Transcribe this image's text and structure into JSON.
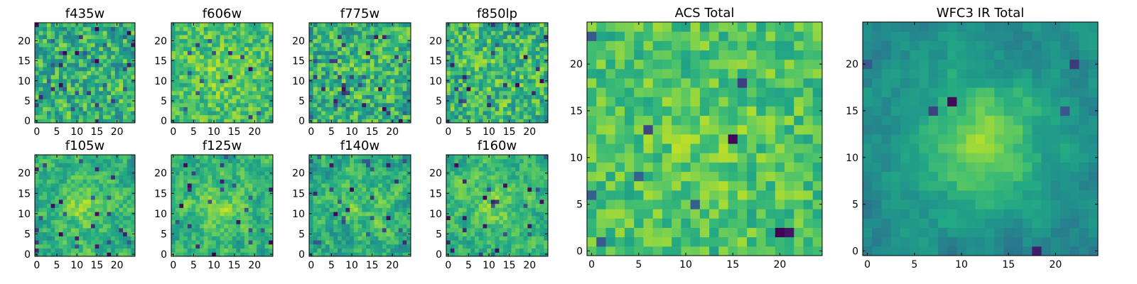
{
  "chart_data": [
    {
      "type": "heatmap",
      "title": "f435w",
      "xlim": [
        0,
        25
      ],
      "ylim": [
        0,
        25
      ],
      "xticks": [
        "0",
        "5",
        "10",
        "15",
        "20"
      ],
      "yticks": [
        "0",
        "5",
        "10",
        "15",
        "20"
      ],
      "pattern": {
        "type": "noise",
        "seed": 11,
        "mean": 0.55,
        "noise": 0.28,
        "smooth": 0.05,
        "blob_amp": 0.0,
        "dark_frac": 0.06
      }
    },
    {
      "type": "heatmap",
      "title": "f606w",
      "xlim": [
        0,
        25
      ],
      "ylim": [
        0,
        25
      ],
      "xticks": [
        "0",
        "5",
        "10",
        "15",
        "20"
      ],
      "yticks": [
        "0",
        "5",
        "10",
        "15",
        "20"
      ],
      "pattern": {
        "type": "noise",
        "seed": 23,
        "mean": 0.66,
        "noise": 0.22,
        "smooth": 0.1,
        "blob_amp": 0.1,
        "dark_frac": 0.03
      }
    },
    {
      "type": "heatmap",
      "title": "f775w",
      "xlim": [
        0,
        25
      ],
      "ylim": [
        0,
        25
      ],
      "xticks": [
        "0",
        "5",
        "10",
        "15",
        "20"
      ],
      "yticks": [
        "0",
        "5",
        "10",
        "15",
        "20"
      ],
      "pattern": {
        "type": "noise",
        "seed": 37,
        "mean": 0.56,
        "noise": 0.28,
        "smooth": 0.05,
        "blob_amp": 0.05,
        "dark_frac": 0.05
      }
    },
    {
      "type": "heatmap",
      "title": "f850lp",
      "xlim": [
        0,
        25
      ],
      "ylim": [
        0,
        25
      ],
      "xticks": [
        "0",
        "5",
        "10",
        "15",
        "20"
      ],
      "yticks": [
        "0",
        "5",
        "10",
        "15",
        "20"
      ],
      "pattern": {
        "type": "noise",
        "seed": 41,
        "mean": 0.58,
        "noise": 0.28,
        "smooth": 0.05,
        "blob_amp": 0.05,
        "dark_frac": 0.05
      }
    },
    {
      "type": "heatmap",
      "title": "f105w",
      "xlim": [
        0,
        25
      ],
      "ylim": [
        0,
        25
      ],
      "xticks": [
        "0",
        "5",
        "10",
        "15",
        "20"
      ],
      "yticks": [
        "0",
        "5",
        "10",
        "15",
        "20"
      ],
      "pattern": {
        "type": "noise",
        "seed": 53,
        "mean": 0.6,
        "noise": 0.24,
        "smooth": 0.45,
        "blob_amp": 0.2,
        "dark_frac": 0.03
      }
    },
    {
      "type": "heatmap",
      "title": "f125w",
      "xlim": [
        0,
        25
      ],
      "ylim": [
        0,
        25
      ],
      "xticks": [
        "0",
        "5",
        "10",
        "15",
        "20"
      ],
      "yticks": [
        "0",
        "5",
        "10",
        "15",
        "20"
      ],
      "pattern": {
        "type": "noise",
        "seed": 67,
        "mean": 0.6,
        "noise": 0.24,
        "smooth": 0.45,
        "blob_amp": 0.15,
        "dark_frac": 0.03
      }
    },
    {
      "type": "heatmap",
      "title": "f140w",
      "xlim": [
        0,
        25
      ],
      "ylim": [
        0,
        25
      ],
      "xticks": [
        "0",
        "5",
        "10",
        "15",
        "20"
      ],
      "yticks": [
        "0",
        "5",
        "10",
        "15",
        "20"
      ],
      "pattern": {
        "type": "noise",
        "seed": 79,
        "mean": 0.56,
        "noise": 0.26,
        "smooth": 0.45,
        "blob_amp": 0.15,
        "dark_frac": 0.04
      }
    },
    {
      "type": "heatmap",
      "title": "f160w",
      "xlim": [
        0,
        25
      ],
      "ylim": [
        0,
        25
      ],
      "xticks": [
        "0",
        "5",
        "10",
        "15",
        "20"
      ],
      "yticks": [
        "0",
        "5",
        "10",
        "15",
        "20"
      ],
      "pattern": {
        "type": "noise",
        "seed": 83,
        "mean": 0.6,
        "noise": 0.24,
        "smooth": 0.45,
        "blob_amp": 0.2,
        "dark_frac": 0.03
      }
    },
    {
      "type": "heatmap",
      "title": "ACS Total",
      "xlim": [
        0,
        25
      ],
      "ylim": [
        0,
        25
      ],
      "xticks": [
        "0",
        "5",
        "10",
        "15",
        "20"
      ],
      "yticks": [
        "0",
        "5",
        "10",
        "15",
        "20"
      ],
      "pattern": {
        "type": "noise",
        "seed": 97,
        "mean": 0.66,
        "noise": 0.2,
        "smooth": 0.1,
        "blob_amp": 0.08,
        "dark_frac": 0.02
      }
    },
    {
      "type": "heatmap",
      "title": "WFC3 IR Total",
      "xlim": [
        0,
        25
      ],
      "ylim": [
        0,
        25
      ],
      "xticks": [
        "0",
        "5",
        "10",
        "15",
        "20"
      ],
      "yticks": [
        "0",
        "5",
        "10",
        "15",
        "20"
      ],
      "pattern": {
        "type": "noise",
        "seed": 101,
        "mean": 0.48,
        "noise": 0.14,
        "smooth": 0.55,
        "blob_amp": 0.4,
        "dark_frac": 0.02
      }
    }
  ],
  "colormap": {
    "name": "viridis-upper",
    "stops": [
      "#440154",
      "#3b528b",
      "#2a788e",
      "#21918c",
      "#22a884",
      "#44bf70",
      "#7ad151",
      "#bddf26",
      "#fde725"
    ]
  }
}
